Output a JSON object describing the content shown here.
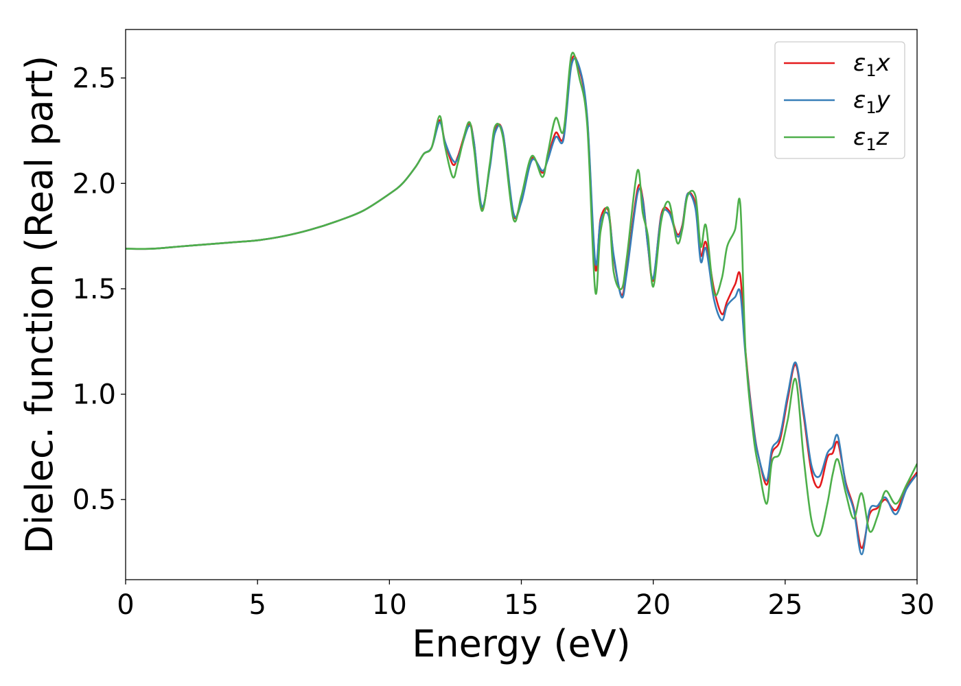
{
  "chart_data": {
    "type": "line",
    "title": "",
    "xlabel": "Energy (eV)",
    "ylabel": "Dielec. function (Real part)",
    "xlim": [
      0,
      30
    ],
    "ylim": [
      0.12,
      2.73
    ],
    "xticks": [
      0,
      5,
      10,
      15,
      20,
      25,
      30
    ],
    "xtick_labels": [
      "0",
      "5",
      "10",
      "15",
      "20",
      "25",
      "30"
    ],
    "yticks": [
      0.5,
      1.0,
      1.5,
      2.0,
      2.5
    ],
    "ytick_labels": [
      "0.5",
      "1.0",
      "1.5",
      "2.0",
      "2.5"
    ],
    "grid": false,
    "legend_position": "top-right",
    "series": [
      {
        "name": "ε1x",
        "legend_main": "ε",
        "legend_sub": "1",
        "legend_tail": "x",
        "color": "#e41a1c",
        "x": [
          0,
          1,
          2,
          3,
          4,
          5,
          6,
          7,
          8,
          9,
          10,
          10.5,
          11,
          11.3,
          11.6,
          11.9,
          12.1,
          12.4,
          12.6,
          13.0,
          13.2,
          13.5,
          13.8,
          14.0,
          14.3,
          14.7,
          15.0,
          15.4,
          15.8,
          16.0,
          16.3,
          16.6,
          16.9,
          17.2,
          17.5,
          17.8,
          18.0,
          18.3,
          18.5,
          18.8,
          19.0,
          19.4,
          19.6,
          19.8,
          20.0,
          20.3,
          20.6,
          20.9,
          21.1,
          21.3,
          21.6,
          21.8,
          22.0,
          22.3,
          22.6,
          22.8,
          23.1,
          23.3,
          23.5,
          23.8,
          24.0,
          24.3,
          24.5,
          24.8,
          25.1,
          25.4,
          25.7,
          26.0,
          26.3,
          26.6,
          26.8,
          27.0,
          27.3,
          27.6,
          27.9,
          28.2,
          28.5,
          28.8,
          29.2,
          29.6,
          30
        ],
        "y": [
          1.69,
          1.69,
          1.7,
          1.71,
          1.72,
          1.73,
          1.75,
          1.78,
          1.82,
          1.87,
          1.95,
          2.0,
          2.08,
          2.14,
          2.17,
          2.3,
          2.2,
          2.09,
          2.13,
          2.28,
          2.2,
          1.88,
          2.08,
          2.25,
          2.24,
          1.85,
          1.93,
          2.12,
          2.05,
          2.12,
          2.24,
          2.22,
          2.58,
          2.54,
          2.3,
          1.6,
          1.83,
          1.87,
          1.65,
          1.47,
          1.6,
          1.97,
          1.93,
          1.7,
          1.54,
          1.85,
          1.87,
          1.76,
          1.8,
          1.95,
          1.9,
          1.66,
          1.72,
          1.5,
          1.38,
          1.44,
          1.52,
          1.56,
          1.2,
          0.85,
          0.7,
          0.57,
          0.72,
          0.78,
          0.98,
          1.14,
          0.9,
          0.63,
          0.56,
          0.7,
          0.72,
          0.77,
          0.58,
          0.46,
          0.27,
          0.43,
          0.46,
          0.5,
          0.45,
          0.56,
          0.63
        ]
      },
      {
        "name": "ε1y",
        "legend_main": "ε",
        "legend_sub": "1",
        "legend_tail": "y",
        "color": "#377eb8",
        "x": [
          0,
          1,
          2,
          3,
          4,
          5,
          6,
          7,
          8,
          9,
          10,
          10.5,
          11,
          11.3,
          11.6,
          11.9,
          12.1,
          12.4,
          12.6,
          13.0,
          13.2,
          13.5,
          13.8,
          14.0,
          14.3,
          14.7,
          15.0,
          15.4,
          15.8,
          16.0,
          16.3,
          16.6,
          16.9,
          17.2,
          17.5,
          17.8,
          18.0,
          18.3,
          18.5,
          18.8,
          19.0,
          19.4,
          19.6,
          19.8,
          20.0,
          20.3,
          20.6,
          20.9,
          21.1,
          21.3,
          21.6,
          21.8,
          22.0,
          22.3,
          22.6,
          22.8,
          23.1,
          23.3,
          23.5,
          23.8,
          24.0,
          24.3,
          24.5,
          24.8,
          25.1,
          25.4,
          25.7,
          26.0,
          26.3,
          26.6,
          26.8,
          27.0,
          27.3,
          27.6,
          27.9,
          28.2,
          28.5,
          28.8,
          29.2,
          29.6,
          30
        ],
        "y": [
          1.69,
          1.69,
          1.7,
          1.71,
          1.72,
          1.73,
          1.75,
          1.78,
          1.82,
          1.87,
          1.95,
          2.0,
          2.08,
          2.14,
          2.17,
          2.29,
          2.2,
          2.11,
          2.12,
          2.27,
          2.2,
          1.89,
          2.07,
          2.24,
          2.24,
          1.86,
          1.91,
          2.11,
          2.06,
          2.11,
          2.22,
          2.21,
          2.56,
          2.55,
          2.31,
          1.63,
          1.82,
          1.85,
          1.66,
          1.46,
          1.58,
          1.95,
          1.92,
          1.7,
          1.55,
          1.84,
          1.86,
          1.75,
          1.79,
          1.95,
          1.88,
          1.63,
          1.69,
          1.45,
          1.35,
          1.42,
          1.46,
          1.48,
          1.18,
          0.84,
          0.7,
          0.59,
          0.74,
          0.8,
          1.0,
          1.15,
          0.92,
          0.66,
          0.61,
          0.72,
          0.75,
          0.8,
          0.57,
          0.45,
          0.24,
          0.45,
          0.47,
          0.51,
          0.43,
          0.55,
          0.62
        ]
      },
      {
        "name": "ε1z",
        "legend_main": "ε",
        "legend_sub": "1",
        "legend_tail": "z",
        "color": "#4daf4a",
        "x": [
          0,
          1,
          2,
          3,
          4,
          5,
          6,
          7,
          8,
          9,
          10,
          10.5,
          11,
          11.3,
          11.6,
          11.9,
          12.1,
          12.4,
          12.6,
          13.0,
          13.2,
          13.5,
          13.8,
          14.0,
          14.3,
          14.7,
          15.0,
          15.4,
          15.8,
          16.0,
          16.3,
          16.6,
          16.9,
          17.2,
          17.5,
          17.8,
          18.0,
          18.3,
          18.5,
          18.8,
          19.0,
          19.4,
          19.6,
          19.8,
          20.0,
          20.3,
          20.6,
          20.9,
          21.1,
          21.3,
          21.6,
          21.8,
          22.0,
          22.3,
          22.6,
          22.8,
          23.1,
          23.3,
          23.5,
          23.8,
          24.0,
          24.3,
          24.5,
          24.8,
          25.1,
          25.4,
          25.7,
          26.0,
          26.3,
          26.6,
          26.8,
          27.0,
          27.3,
          27.6,
          27.9,
          28.2,
          28.5,
          28.8,
          29.2,
          29.6,
          30
        ],
        "y": [
          1.69,
          1.69,
          1.7,
          1.71,
          1.72,
          1.73,
          1.75,
          1.78,
          1.82,
          1.87,
          1.95,
          2.0,
          2.08,
          2.14,
          2.17,
          2.32,
          2.18,
          2.03,
          2.1,
          2.29,
          2.17,
          1.87,
          2.09,
          2.27,
          2.22,
          1.83,
          1.94,
          2.13,
          2.03,
          2.14,
          2.31,
          2.25,
          2.61,
          2.5,
          2.27,
          1.49,
          1.77,
          1.88,
          1.58,
          1.5,
          1.65,
          2.06,
          1.86,
          1.75,
          1.51,
          1.82,
          1.91,
          1.72,
          1.78,
          1.94,
          1.94,
          1.7,
          1.8,
          1.48,
          1.55,
          1.7,
          1.78,
          1.9,
          1.2,
          0.8,
          0.65,
          0.48,
          0.68,
          0.72,
          0.88,
          1.07,
          0.7,
          0.4,
          0.33,
          0.48,
          0.62,
          0.69,
          0.53,
          0.41,
          0.53,
          0.35,
          0.42,
          0.54,
          0.48,
          0.57,
          0.67
        ]
      }
    ]
  }
}
